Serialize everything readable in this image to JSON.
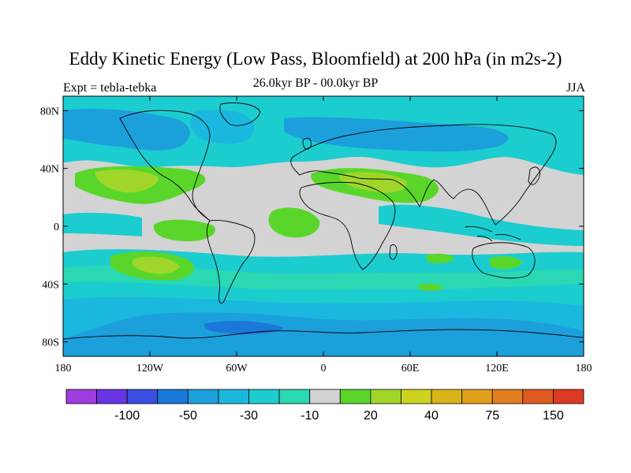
{
  "title": "Eddy Kinetic Energy (Low Pass, Bloomfield) at 200 hPa (in m2s-2)",
  "left_label": "Expt = tebla-tebka",
  "center_label": "26.0kyr BP - 00.0kyr BP",
  "right_label": "JJA",
  "lat_ticks": [
    {
      "label": "80N",
      "value": 80
    },
    {
      "label": "40N",
      "value": 40
    },
    {
      "label": "0",
      "value": 0
    },
    {
      "label": "40S",
      "value": -40
    },
    {
      "label": "80S",
      "value": -80
    }
  ],
  "lon_ticks": [
    {
      "label": "180",
      "value": -180
    },
    {
      "label": "120W",
      "value": -120
    },
    {
      "label": "60W",
      "value": -60
    },
    {
      "label": "0",
      "value": 0
    },
    {
      "label": "60E",
      "value": 60
    },
    {
      "label": "120E",
      "value": 120
    },
    {
      "label": "180",
      "value": 180
    }
  ],
  "colorbar": {
    "colors": [
      "#a03ce0",
      "#6a34e4",
      "#3a4ee0",
      "#1a78d8",
      "#1ca0dc",
      "#1ab8de",
      "#1ccdd0",
      "#2ad8b4",
      "#d3d3d3",
      "#5ad62a",
      "#a0d62a",
      "#cdd21e",
      "#d8b418",
      "#e0a01a",
      "#e07e20",
      "#e05a22",
      "#dc3a22"
    ],
    "labels": [
      {
        "text": "-100",
        "after_box": 2
      },
      {
        "text": "-50",
        "after_box": 4
      },
      {
        "text": "-30",
        "after_box": 6
      },
      {
        "text": "-10",
        "after_box": 8
      },
      {
        "text": "20",
        "after_box": 10
      },
      {
        "text": "40",
        "after_box": 12
      },
      {
        "text": "75",
        "after_box": 14
      },
      {
        "text": "150",
        "after_box": 16
      }
    ]
  },
  "palette": {
    "background": "#d3d3d3",
    "cyan": "#1ccdd0",
    "light_blue": "#1ab8de",
    "blue": "#1ca0dc",
    "dark_blue": "#1a78d8",
    "teal": "#2ad8b4",
    "green": "#5ad62a",
    "yellow_green": "#a0d62a",
    "yellow": "#cdd21e",
    "coast": "#000000"
  }
}
